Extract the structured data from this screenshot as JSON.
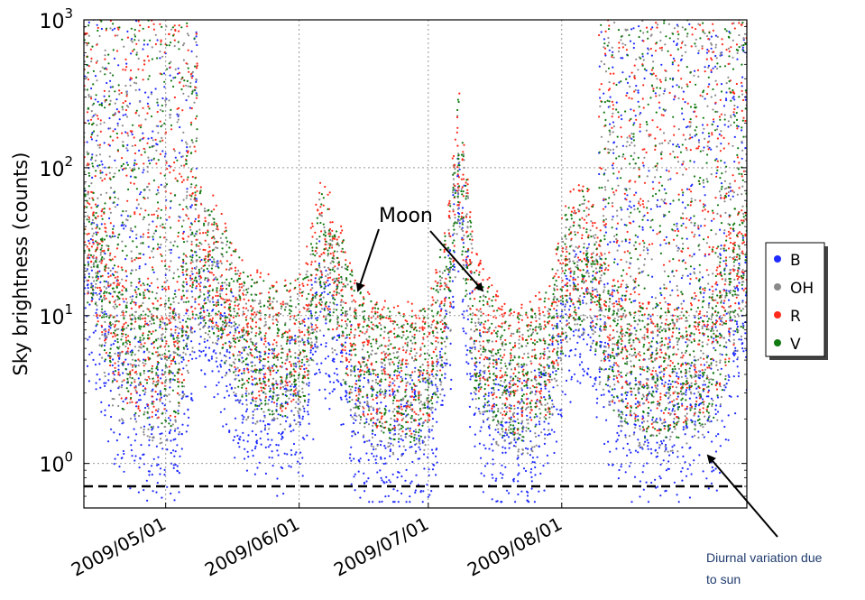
{
  "chart_data": {
    "type": "scatter",
    "title": "",
    "xlabel": "",
    "ylabel": "Sky brightness (counts)",
    "yscale": "log",
    "ylim": [
      0.5,
      1000
    ],
    "xlim": [
      "2009-04-12",
      "2009-09-13"
    ],
    "grid": true,
    "legend_placement": "right",
    "x_tick_labels": [
      "2009/05/01",
      "2009/06/01",
      "2009/07/01",
      "2009/08/01"
    ],
    "x_ticks": [
      "2009-05-01",
      "2009-06-01",
      "2009-07-01",
      "2009-08-01"
    ],
    "y_ticks": [
      {
        "value": 1,
        "base": "10",
        "exp": "0"
      },
      {
        "value": 10,
        "base": "10",
        "exp": "1"
      },
      {
        "value": 100,
        "base": "10",
        "exp": "2"
      },
      {
        "value": 1000,
        "base": "10",
        "exp": "3"
      }
    ],
    "reference_line": {
      "value": 0.7,
      "style": "dashed",
      "color": "#000000"
    },
    "series": [
      {
        "name": "B",
        "color": "#1f2bff"
      },
      {
        "name": "OH",
        "color": "#8a8a8a"
      },
      {
        "name": "R",
        "color": "#ff2a1a"
      },
      {
        "name": "V",
        "color": "#117a11"
      }
    ],
    "sky_level_profile": {
      "dates": [
        "2009-04-12",
        "2009-04-20",
        "2009-04-28",
        "2009-05-04",
        "2009-05-08",
        "2009-05-12",
        "2009-05-20",
        "2009-05-28",
        "2009-06-02",
        "2009-06-06",
        "2009-06-10",
        "2009-06-14",
        "2009-06-20",
        "2009-06-26",
        "2009-07-01",
        "2009-07-05",
        "2009-07-08",
        "2009-07-12",
        "2009-07-18",
        "2009-07-24",
        "2009-07-29",
        "2009-08-02",
        "2009-08-07",
        "2009-08-12",
        "2009-08-20",
        "2009-08-28",
        "2009-09-05",
        "2009-09-13"
      ],
      "V_median": [
        30,
        5,
        3.5,
        3.5,
        20,
        15,
        5,
        4,
        5,
        20,
        12,
        4,
        3,
        2.8,
        3,
        10,
        80,
        6,
        3,
        2.8,
        4,
        15,
        20,
        5,
        3,
        3,
        4,
        20
      ]
    },
    "annotations": [
      {
        "text": "Moon",
        "points_to": [
          {
            "x": "2009-06-09",
            "y": 15
          },
          {
            "x": "2009-07-04",
            "y": 15
          }
        ]
      },
      {
        "text": "Diurnal variation due to sun",
        "points_to": [
          {
            "x": "2009-08-31",
            "y": 1.1
          }
        ]
      }
    ]
  },
  "annotation_text": {
    "moon": "Moon",
    "diurnal_line1": "Diurnal variation due",
    "diurnal_line2": "to sun"
  }
}
